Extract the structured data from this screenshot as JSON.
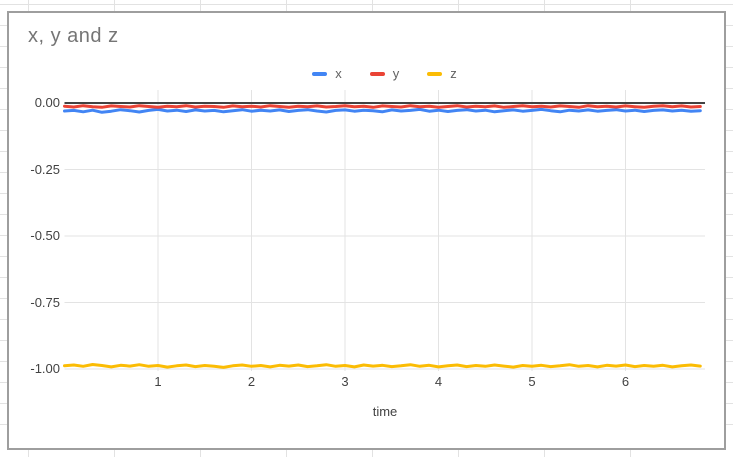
{
  "chart_data": {
    "type": "line",
    "title": "x, y and z",
    "xlabel": "time",
    "legend_position": "top",
    "grid": true,
    "x_start": 0,
    "x_step": 0.1,
    "xlim": [
      0,
      6.85
    ],
    "ylim": [
      0.05,
      -1.01
    ],
    "xticks": [
      1,
      2,
      3,
      4,
      5,
      6
    ],
    "ytick_values": [
      0,
      -0.25,
      -0.5,
      -0.75,
      -1
    ],
    "ytick_labels": [
      "0.00",
      "-0.25",
      "-0.50",
      "-0.75",
      "-1.00"
    ],
    "series": [
      {
        "name": "x",
        "color": "#4285F4",
        "values": [
          -0.03,
          -0.028,
          -0.033,
          -0.027,
          -0.035,
          -0.031,
          -0.025,
          -0.029,
          -0.034,
          -0.028,
          -0.024,
          -0.03,
          -0.027,
          -0.032,
          -0.026,
          -0.03,
          -0.028,
          -0.033,
          -0.029,
          -0.025,
          -0.031,
          -0.027,
          -0.03,
          -0.026,
          -0.032,
          -0.028,
          -0.025,
          -0.03,
          -0.034,
          -0.028,
          -0.026,
          -0.031,
          -0.027,
          -0.029,
          -0.033,
          -0.026,
          -0.03,
          -0.028,
          -0.024,
          -0.031,
          -0.027,
          -0.032,
          -0.028,
          -0.025,
          -0.03,
          -0.027,
          -0.033,
          -0.029,
          -0.026,
          -0.031,
          -0.028,
          -0.024,
          -0.029,
          -0.033,
          -0.027,
          -0.03,
          -0.026,
          -0.031,
          -0.028,
          -0.025,
          -0.03,
          -0.027,
          -0.032,
          -0.028,
          -0.026,
          -0.03,
          -0.027,
          -0.031,
          -0.029
        ]
      },
      {
        "name": "y",
        "color": "#EA4335",
        "values": [
          -0.012,
          -0.015,
          -0.01,
          -0.014,
          -0.016,
          -0.011,
          -0.013,
          -0.015,
          -0.01,
          -0.013,
          -0.016,
          -0.012,
          -0.014,
          -0.01,
          -0.015,
          -0.012,
          -0.013,
          -0.016,
          -0.011,
          -0.014,
          -0.012,
          -0.015,
          -0.01,
          -0.013,
          -0.016,
          -0.012,
          -0.014,
          -0.011,
          -0.015,
          -0.013,
          -0.01,
          -0.014,
          -0.012,
          -0.016,
          -0.011,
          -0.013,
          -0.015,
          -0.01,
          -0.014,
          -0.012,
          -0.016,
          -0.013,
          -0.01,
          -0.015,
          -0.012,
          -0.014,
          -0.011,
          -0.016,
          -0.013,
          -0.01,
          -0.014,
          -0.012,
          -0.015,
          -0.011,
          -0.013,
          -0.016,
          -0.01,
          -0.014,
          -0.012,
          -0.015,
          -0.011,
          -0.014,
          -0.016,
          -0.012,
          -0.01,
          -0.014,
          -0.011,
          -0.015,
          -0.013
        ]
      },
      {
        "name": "z",
        "color": "#FBBC04",
        "values": [
          -0.988,
          -0.985,
          -0.99,
          -0.983,
          -0.987,
          -0.992,
          -0.986,
          -0.989,
          -0.984,
          -0.99,
          -0.987,
          -0.993,
          -0.988,
          -0.985,
          -0.991,
          -0.987,
          -0.99,
          -0.994,
          -0.988,
          -0.985,
          -0.99,
          -0.987,
          -0.992,
          -0.986,
          -0.989,
          -0.985,
          -0.991,
          -0.988,
          -0.984,
          -0.99,
          -0.987,
          -0.992,
          -0.985,
          -0.989,
          -0.986,
          -0.991,
          -0.988,
          -0.984,
          -0.99,
          -0.986,
          -0.992,
          -0.988,
          -0.985,
          -0.991,
          -0.987,
          -0.99,
          -0.985,
          -0.989,
          -0.993,
          -0.987,
          -0.99,
          -0.986,
          -0.991,
          -0.988,
          -0.984,
          -0.99,
          -0.987,
          -0.992,
          -0.986,
          -0.989,
          -0.985,
          -0.991,
          -0.987,
          -0.99,
          -0.986,
          -0.992,
          -0.988,
          -0.985,
          -0.989
        ]
      }
    ]
  },
  "colors": {
    "grid_line": "#e3e3e3",
    "zero_baseline": "#424242",
    "card_border": "#9e9e9e",
    "title_text": "#757575",
    "tick_text": "#424242",
    "sheet_grid_line": "#e2e2e2"
  }
}
